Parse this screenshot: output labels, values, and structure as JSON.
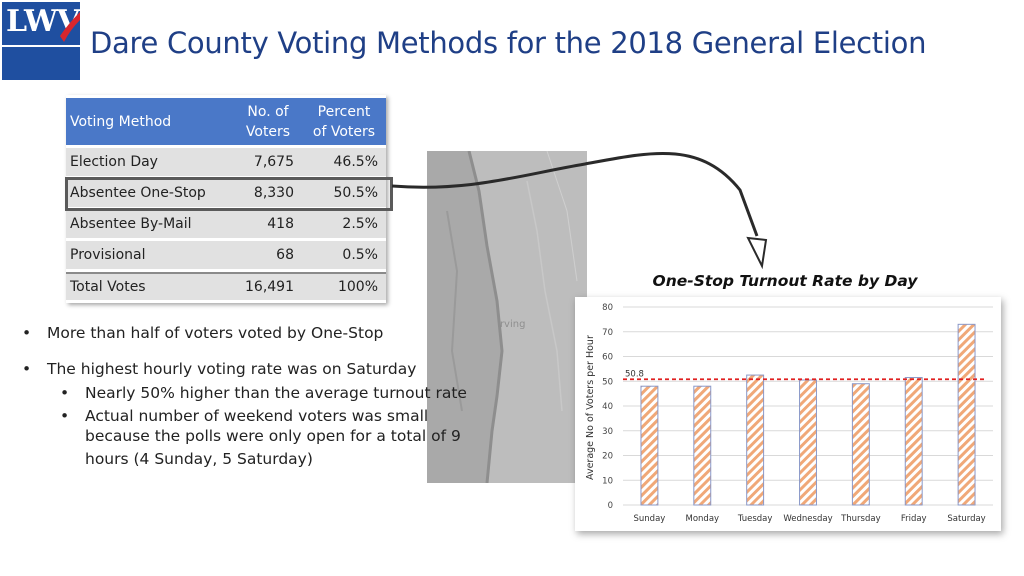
{
  "logo": {
    "text": "LWV"
  },
  "title": "Dare County Voting Methods for the 2018 General Election",
  "table": {
    "headers": {
      "method": "Voting Method",
      "voters_line1": "No. of",
      "voters_line2": "Voters",
      "percent_line1": "Percent",
      "percent_line2": "of Voters"
    },
    "rows": [
      {
        "method": "Election Day",
        "voters": "7,675",
        "percent": "46.5%"
      },
      {
        "method": "Absentee One-Stop",
        "voters": "8,330",
        "percent": "50.5%"
      },
      {
        "method": "Absentee By-Mail",
        "voters": "418",
        "percent": "2.5%"
      },
      {
        "method": "Provisional",
        "voters": "68",
        "percent": "0.5%"
      }
    ],
    "total": {
      "method": "Total Votes",
      "voters": "16,491",
      "percent": "100%"
    }
  },
  "map": {
    "label": "Irving"
  },
  "bullets": {
    "b1": "More than half of voters voted by One-Stop",
    "b2": "The highest hourly voting rate was on Saturday",
    "sub1": "Nearly 50% higher than the average turnout rate",
    "sub2_line1": "Actual number of weekend voters was small",
    "sub2_line2": "because the polls were only open for a total of 9",
    "sub2_line3": "hours (4 Sunday, 5 Saturday)"
  },
  "colors": {
    "header_blue": "#4a78c8",
    "title_blue": "#1f3f86",
    "bar_hatch": "#f0a878",
    "average_line": "#e02020"
  },
  "chart_data": {
    "type": "bar",
    "title": "One-Stop Turnout Rate by Day",
    "ylabel": "Average No of Voters per Hour",
    "xlabel": "",
    "categories": [
      "Sunday",
      "Monday",
      "Tuesday",
      "Wednesday",
      "Thursday",
      "Friday",
      "Saturday"
    ],
    "values": [
      48,
      48,
      52.5,
      50.5,
      49,
      51.5,
      73
    ],
    "ylim": [
      0,
      80
    ],
    "yticks": [
      0,
      10,
      20,
      30,
      40,
      50,
      60,
      70,
      80
    ],
    "average": {
      "value": 50.8,
      "label": "50.8"
    },
    "grid": true,
    "legend": "none"
  }
}
